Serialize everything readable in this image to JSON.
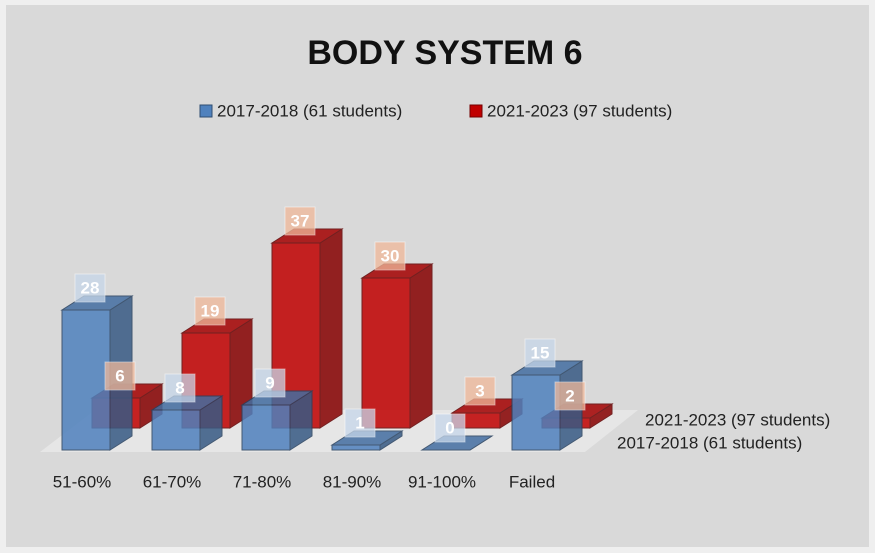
{
  "chart_data": {
    "type": "bar3d",
    "title": "BODY SYSTEM 6",
    "categories": [
      "51-60%",
      "61-70%",
      "71-80%",
      "81-90%",
      "91-100%",
      "Failed"
    ],
    "series": [
      {
        "name": "2017-2018 (61 students)",
        "color": "#4f81bd",
        "values": [
          28,
          8,
          9,
          1,
          0,
          15
        ]
      },
      {
        "name": "2021-2023 (97 students)",
        "color": "#c00000",
        "values": [
          6,
          19,
          37,
          30,
          3,
          2
        ]
      }
    ],
    "legend": "top"
  }
}
